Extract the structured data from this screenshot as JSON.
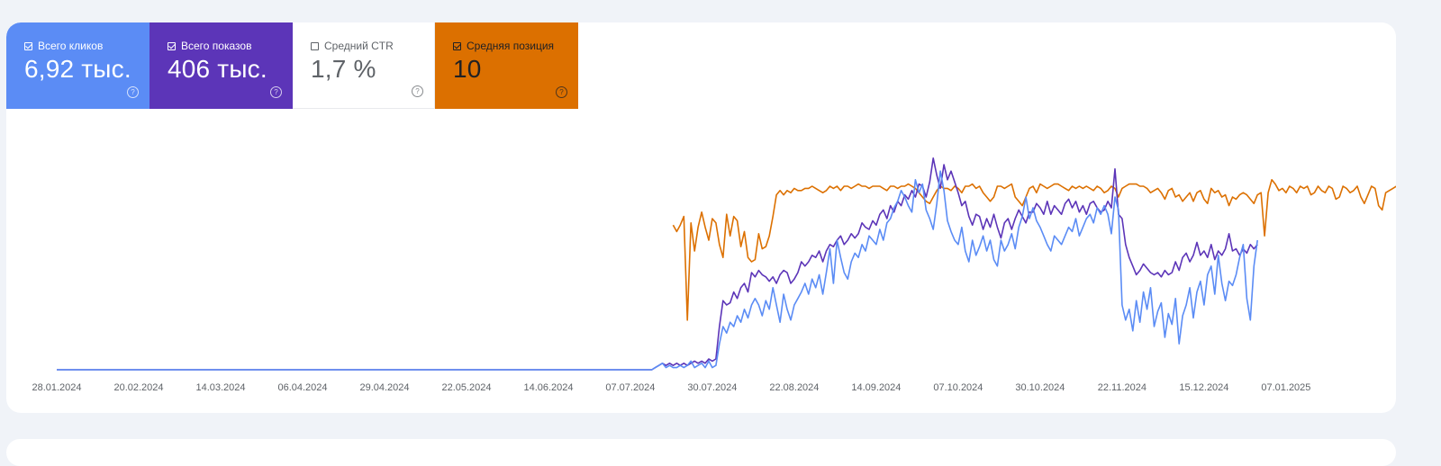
{
  "metrics": [
    {
      "key": "clicks",
      "label": "Всего кликов",
      "value": "6,92 тыс.",
      "checked": true,
      "color": "#5b8cf5"
    },
    {
      "key": "impressions",
      "label": "Всего показов",
      "value": "406 тыс.",
      "checked": true,
      "color": "#5c35b8"
    },
    {
      "key": "ctr",
      "label": "Средний CTR",
      "value": "1,7 %",
      "checked": false,
      "color": "#ffffff"
    },
    {
      "key": "position",
      "label": "Средняя позиция",
      "value": "10",
      "checked": true,
      "color": "#dc7000"
    }
  ],
  "help_glyph": "?",
  "chart_data": {
    "type": "line",
    "x_tick_labels": [
      "28.01.2024",
      "20.02.2024",
      "14.03.2024",
      "06.04.2024",
      "29.04.2024",
      "22.05.2024",
      "14.06.2024",
      "07.07.2024",
      "30.07.2024",
      "22.08.2024",
      "14.09.2024",
      "07.10.2024",
      "30.10.2024",
      "22.11.2024",
      "15.12.2024",
      "07.01.2025"
    ],
    "x_range": [
      "28.01.2024",
      "27.01.2025"
    ],
    "grid": false,
    "legend": "metric tiles at top-left",
    "series": [
      {
        "color": "#dc7000",
        "start": "19.07.2024",
        "values": [
          0.67,
          0.64,
          0.67,
          0.71,
          0.23,
          0.68,
          0.55,
          0.66,
          0.73,
          0.66,
          0.6,
          0.7,
          0.68,
          0.58,
          0.52,
          0.72,
          0.62,
          0.71,
          0.69,
          0.57,
          0.64,
          0.52,
          0.5,
          0.51,
          0.63,
          0.56,
          0.57,
          0.62,
          0.71,
          0.81,
          0.83,
          0.81,
          0.83,
          0.82,
          0.84,
          0.83,
          0.83,
          0.84,
          0.84,
          0.85,
          0.84,
          0.83,
          0.82,
          0.83,
          0.85,
          0.84,
          0.85,
          0.83,
          0.85,
          0.85,
          0.84,
          0.85,
          0.86,
          0.85,
          0.85,
          0.84,
          0.85,
          0.85,
          0.85,
          0.84,
          0.83,
          0.85,
          0.85,
          0.84,
          0.85,
          0.85,
          0.86,
          0.85,
          0.84,
          0.82,
          0.8,
          0.78,
          0.77,
          0.8,
          0.83,
          0.85,
          0.84,
          0.84,
          0.83,
          0.85,
          0.84,
          0.82,
          0.85,
          0.85,
          0.86,
          0.84,
          0.85,
          0.82,
          0.8,
          0.78,
          0.8,
          0.85,
          0.85,
          0.84,
          0.85,
          0.86,
          0.8,
          0.78,
          0.76,
          0.8,
          0.84,
          0.85,
          0.82,
          0.86,
          0.85,
          0.84,
          0.85,
          0.86,
          0.86,
          0.85,
          0.84,
          0.83,
          0.85,
          0.84,
          0.85,
          0.84,
          0.85,
          0.84,
          0.83,
          0.85,
          0.84,
          0.82,
          0.83,
          0.85,
          0.84,
          0.8,
          0.84,
          0.85,
          0.86,
          0.86,
          0.86,
          0.85,
          0.85,
          0.84,
          0.82,
          0.83,
          0.84,
          0.82,
          0.79,
          0.83,
          0.84,
          0.8,
          0.81,
          0.78,
          0.8,
          0.82,
          0.78,
          0.82,
          0.83,
          0.79,
          0.77,
          0.84,
          0.82,
          0.83,
          0.8,
          0.81,
          0.76,
          0.8,
          0.79,
          0.81,
          0.82,
          0.81,
          0.79,
          0.77,
          0.81,
          0.82,
          0.62,
          0.82,
          0.88,
          0.86,
          0.83,
          0.84,
          0.82,
          0.85,
          0.84,
          0.82,
          0.85,
          0.84,
          0.85,
          0.81,
          0.82,
          0.85,
          0.83,
          0.82,
          0.85,
          0.84,
          0.79,
          0.8,
          0.85,
          0.84,
          0.82,
          0.83,
          0.85,
          0.8,
          0.77,
          0.81,
          0.85,
          0.84,
          0.76,
          0.74,
          0.82,
          0.83,
          0.84,
          0.85,
          0.83,
          0.84,
          0.74,
          0.86,
          0.85,
          0.85,
          0.84,
          0.86,
          0.84,
          0.82,
          0.86,
          0.86,
          0.85,
          0.86,
          0.85
        ]
      },
      {
        "color": "#5c35b8",
        "start": "28.01.2024",
        "values": [
          0,
          0,
          0,
          0,
          0,
          0,
          0,
          0,
          0,
          0,
          0,
          0,
          0,
          0,
          0,
          0,
          0,
          0,
          0,
          0,
          0,
          0,
          0,
          0,
          0,
          0,
          0,
          0,
          0,
          0,
          0,
          0,
          0,
          0,
          0,
          0,
          0,
          0,
          0,
          0,
          0,
          0,
          0,
          0,
          0,
          0,
          0,
          0,
          0,
          0,
          0,
          0,
          0,
          0,
          0,
          0,
          0,
          0,
          0,
          0,
          0,
          0,
          0,
          0,
          0,
          0,
          0,
          0,
          0,
          0,
          0,
          0,
          0,
          0,
          0,
          0,
          0,
          0,
          0,
          0,
          0,
          0,
          0,
          0,
          0,
          0,
          0,
          0,
          0,
          0,
          0,
          0,
          0,
          0,
          0,
          0,
          0,
          0,
          0,
          0,
          0,
          0,
          0,
          0,
          0,
          0,
          0,
          0,
          0,
          0,
          0,
          0,
          0,
          0,
          0,
          0,
          0,
          0,
          0,
          0,
          0,
          0,
          0,
          0,
          0,
          0,
          0,
          0,
          0,
          0,
          0,
          0,
          0,
          0,
          0,
          0,
          0,
          0,
          0,
          0,
          0,
          0,
          0,
          0,
          0,
          0,
          0,
          0,
          0,
          0,
          0,
          0,
          0,
          0,
          0,
          0,
          0,
          0,
          0,
          0,
          0,
          0,
          0,
          0,
          0,
          0,
          0,
          0,
          0.01,
          0.02,
          0.03,
          0.02,
          0.03,
          0.02,
          0.03,
          0.02,
          0.03,
          0.02,
          0.03,
          0.04,
          0.03,
          0.04,
          0.03,
          0.05,
          0.04,
          0.05,
          0.2,
          0.32,
          0.3,
          0.31,
          0.36,
          0.33,
          0.38,
          0.4,
          0.36,
          0.45,
          0.43,
          0.46,
          0.44,
          0.43,
          0.41,
          0.43,
          0.4,
          0.44,
          0.46,
          0.45,
          0.4,
          0.42,
          0.45,
          0.5,
          0.48,
          0.5,
          0.53,
          0.52,
          0.55,
          0.5,
          0.55,
          0.58,
          0.57,
          0.6,
          0.62,
          0.58,
          0.6,
          0.63,
          0.61,
          0.63,
          0.68,
          0.66,
          0.65,
          0.69,
          0.67,
          0.72,
          0.74,
          0.7,
          0.76,
          0.73,
          0.78,
          0.76,
          0.81,
          0.79,
          0.83,
          0.8,
          0.86,
          0.85,
          0.8,
          0.87,
          0.98,
          0.9,
          0.84,
          0.95,
          0.88,
          0.92,
          0.87,
          0.82,
          0.76,
          0.78,
          0.71,
          0.67,
          0.72,
          0.71,
          0.65,
          0.7,
          0.66,
          0.72,
          0.66,
          0.61,
          0.68,
          0.7,
          0.65,
          0.7,
          0.74,
          0.71,
          0.68,
          0.73,
          0.73,
          0.77,
          0.75,
          0.72,
          0.78,
          0.72,
          0.76,
          0.74,
          0.72,
          0.77,
          0.79,
          0.75,
          0.78,
          0.73,
          0.76,
          0.72,
          0.77,
          0.78,
          0.75,
          0.73,
          0.74,
          0.78,
          0.75,
          0.93,
          0.72,
          0.7,
          0.58,
          0.52,
          0.48,
          0.44,
          0.46,
          0.49,
          0.47,
          0.45,
          0.44,
          0.45,
          0.43,
          0.46,
          0.44,
          0.45,
          0.5,
          0.46,
          0.52,
          0.54,
          0.5,
          0.53,
          0.59,
          0.53,
          0.55,
          0.52,
          0.58,
          0.51,
          0.55,
          0.53,
          0.56,
          0.63,
          0.55,
          0.56,
          0.53,
          0.56,
          0.54,
          0.58,
          0.56,
          0.58
        ]
      },
      {
        "color": "#5b8cf5",
        "start": "28.01.2024",
        "values": [
          0,
          0,
          0,
          0,
          0,
          0,
          0,
          0,
          0,
          0,
          0,
          0,
          0,
          0,
          0,
          0,
          0,
          0,
          0,
          0,
          0,
          0,
          0,
          0,
          0,
          0,
          0,
          0,
          0,
          0,
          0,
          0,
          0,
          0,
          0,
          0,
          0,
          0,
          0,
          0,
          0,
          0,
          0,
          0,
          0,
          0,
          0,
          0,
          0,
          0,
          0,
          0,
          0,
          0,
          0,
          0,
          0,
          0,
          0,
          0,
          0,
          0,
          0,
          0,
          0,
          0,
          0,
          0,
          0,
          0,
          0,
          0,
          0,
          0,
          0,
          0,
          0,
          0,
          0,
          0,
          0,
          0,
          0,
          0,
          0,
          0,
          0,
          0,
          0,
          0,
          0,
          0,
          0,
          0,
          0,
          0,
          0,
          0,
          0,
          0,
          0,
          0,
          0,
          0,
          0,
          0,
          0,
          0,
          0,
          0,
          0,
          0,
          0,
          0,
          0,
          0,
          0,
          0,
          0,
          0,
          0,
          0,
          0,
          0,
          0,
          0,
          0,
          0,
          0,
          0,
          0,
          0,
          0,
          0,
          0,
          0,
          0,
          0,
          0,
          0,
          0,
          0,
          0,
          0,
          0,
          0,
          0,
          0,
          0,
          0,
          0,
          0,
          0,
          0,
          0,
          0,
          0,
          0,
          0,
          0,
          0,
          0,
          0,
          0,
          0,
          0,
          0,
          0,
          0.01,
          0.02,
          0.03,
          0.01,
          0.02,
          0.01,
          0.01,
          0.02,
          0.01,
          0.02,
          0.04,
          0.01,
          0.02,
          0.03,
          0.01,
          0.04,
          0.01,
          0.02,
          0.12,
          0.2,
          0.17,
          0.22,
          0.2,
          0.25,
          0.22,
          0.28,
          0.24,
          0.3,
          0.33,
          0.3,
          0.25,
          0.32,
          0.28,
          0.38,
          0.3,
          0.22,
          0.35,
          0.28,
          0.23,
          0.3,
          0.33,
          0.36,
          0.4,
          0.35,
          0.42,
          0.38,
          0.44,
          0.35,
          0.45,
          0.56,
          0.4,
          0.6,
          0.52,
          0.45,
          0.42,
          0.5,
          0.54,
          0.52,
          0.58,
          0.55,
          0.62,
          0.6,
          0.58,
          0.65,
          0.6,
          0.68,
          0.7,
          0.75,
          0.78,
          0.83,
          0.8,
          0.76,
          0.73,
          0.88,
          0.82,
          0.86,
          0.74,
          0.7,
          0.65,
          0.77,
          0.92,
          0.83,
          0.69,
          0.64,
          0.6,
          0.58,
          0.66,
          0.55,
          0.5,
          0.6,
          0.53,
          0.57,
          0.62,
          0.55,
          0.6,
          0.51,
          0.48,
          0.6,
          0.55,
          0.58,
          0.63,
          0.56,
          0.66,
          0.71,
          0.8,
          0.7,
          0.75,
          0.69,
          0.66,
          0.62,
          0.58,
          0.55,
          0.62,
          0.6,
          0.58,
          0.62,
          0.66,
          0.64,
          0.7,
          0.62,
          0.66,
          0.7,
          0.72,
          0.68,
          0.75,
          0.72,
          0.76,
          0.72,
          0.63,
          0.8,
          0.74,
          0.3,
          0.23,
          0.28,
          0.18,
          0.32,
          0.22,
          0.36,
          0.28,
          0.38,
          0.2,
          0.27,
          0.31,
          0.15,
          0.26,
          0.21,
          0.33,
          0.12,
          0.25,
          0.3,
          0.38,
          0.24,
          0.36,
          0.41,
          0.3,
          0.44,
          0.48,
          0.35,
          0.53,
          0.4,
          0.32,
          0.41,
          0.39,
          0.44,
          0.52,
          0.58,
          0.33,
          0.23,
          0.48,
          0.6
        ]
      }
    ]
  }
}
